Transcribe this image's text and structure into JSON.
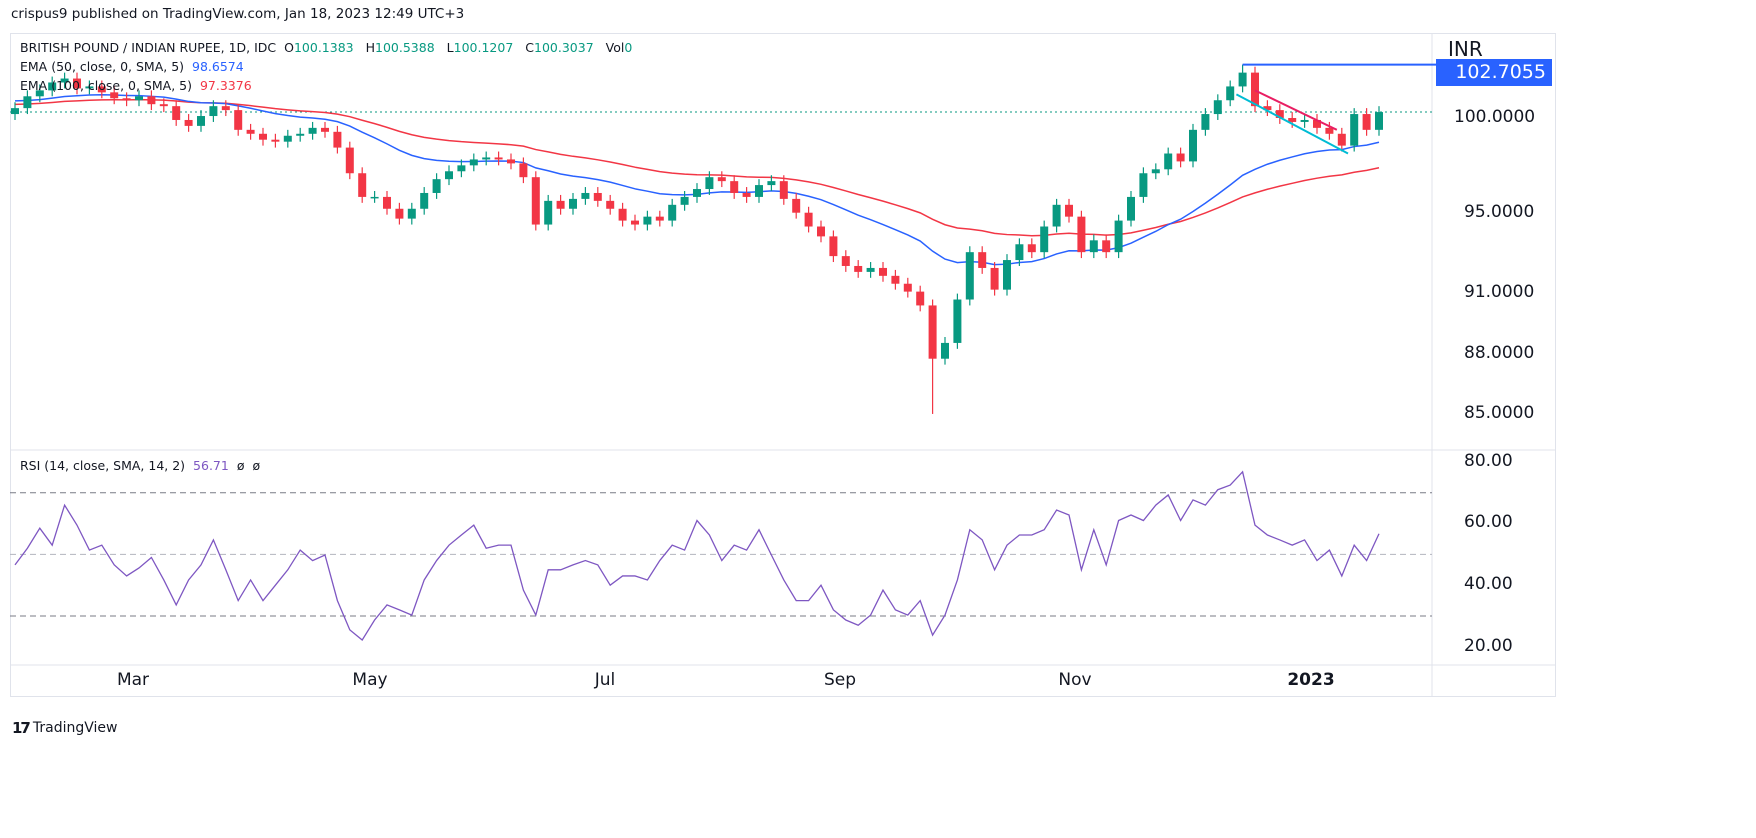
{
  "publisher_line": "crispus9 published on TradingView.com, Jan 18, 2023 12:49 UTC+3",
  "symbol": {
    "name": "BRITISH POUND / INDIAN RUPEE, 1D, IDC",
    "open_label": "O",
    "open": "100.1383",
    "high_label": "H",
    "high": "100.5388",
    "low_label": "L",
    "low": "100.1207",
    "close_label": "C",
    "close": "100.3037",
    "vol_label": "Vol",
    "vol": "0"
  },
  "indicators": {
    "ema50": {
      "label": "EMA (50, close, 0, SMA, 5)",
      "value": "98.6574",
      "color": "#2962ff"
    },
    "ema100": {
      "label": "EMA (100, close, 0, SMA, 5)",
      "value": "97.3376",
      "color": "#f23645"
    },
    "rsi": {
      "label": "RSI (14, close, SMA, 14, 2)",
      "value": "56.71",
      "extra1": "ø",
      "extra2": "ø",
      "color": "#7e57c2"
    }
  },
  "price_axis": {
    "currency": "INR",
    "highlight_label": "102.7055",
    "ticks": [
      "100.0000",
      "95.0000",
      "91.0000",
      "88.0000",
      "85.0000"
    ]
  },
  "rsi_axis": {
    "ticks": [
      "80.00",
      "60.00",
      "40.00",
      "20.00"
    ],
    "bands": [
      70,
      50,
      30
    ]
  },
  "x_axis": {
    "ticks": [
      "Mar",
      "May",
      "Jul",
      "Sep",
      "Nov",
      "2023"
    ]
  },
  "branding": "TradingView",
  "colors": {
    "up": "#089981",
    "down": "#f23645",
    "resistance": "#2962ff",
    "upper_trend": "#e91e63",
    "lower_trend": "#00bcd4"
  },
  "chart_data": [
    {
      "type": "candlestick",
      "ylim": [
        84,
        104
      ],
      "close": [
        100.5,
        101.1,
        101.4,
        101.8,
        102.0,
        101.5,
        101.6,
        101.3,
        101.0,
        100.9,
        101.1,
        100.7,
        100.6,
        99.9,
        99.6,
        100.1,
        100.6,
        100.4,
        99.4,
        99.2,
        98.9,
        98.8,
        99.1,
        99.2,
        99.5,
        99.3,
        98.5,
        97.2,
        96.0,
        96.0,
        95.4,
        94.9,
        95.4,
        96.2,
        96.9,
        97.3,
        97.6,
        97.9,
        98.0,
        97.9,
        97.7,
        97.0,
        94.6,
        95.8,
        95.4,
        95.9,
        96.2,
        95.8,
        95.4,
        94.8,
        94.6,
        95.0,
        94.8,
        95.6,
        96.0,
        96.4,
        97.0,
        96.8,
        96.2,
        96.0,
        96.6,
        96.8,
        95.9,
        95.2,
        94.5,
        94.0,
        93.0,
        92.5,
        92.2,
        92.4,
        92.0,
        91.6,
        91.2,
        90.5,
        87.8,
        88.6,
        90.8,
        93.2,
        92.4,
        91.3,
        92.8,
        93.6,
        93.2,
        94.5,
        95.6,
        95.0,
        93.2,
        93.8,
        93.2,
        94.8,
        96.0,
        97.2,
        97.4,
        98.2,
        97.8,
        99.4,
        100.2,
        100.9,
        101.6,
        102.3,
        100.6,
        100.4,
        100.0,
        99.8,
        99.9,
        99.5,
        99.2,
        98.6,
        100.2,
        99.4,
        100.3
      ],
      "last_price": 100.3037,
      "resistance_level": 102.7055,
      "series": [
        {
          "name": "EMA (50, close, 0, SMA, 5)",
          "last": 98.6574
        },
        {
          "name": "EMA (100, close, 0, SMA, 5)",
          "last": 97.3376
        }
      ]
    },
    {
      "type": "line",
      "ylim": [
        13,
        84
      ],
      "name": "RSI (14, close, SMA, 14, 2)",
      "values": [
        46.6,
        52,
        58.5,
        53,
        66,
        59.5,
        51.4,
        53,
        46.6,
        43,
        45.6,
        49,
        41.7,
        33.6,
        41.7,
        46.6,
        54.7,
        45,
        35,
        41.7,
        35,
        40,
        45,
        51.4,
        48,
        49.8,
        35,
        25.5,
        22.2,
        28.7,
        33.6,
        32,
        30.3,
        41.7,
        48,
        53,
        56.3,
        59.5,
        52,
        53,
        53,
        38.4,
        30.3,
        45,
        45,
        46.6,
        48,
        46.6,
        40,
        43,
        43,
        41.7,
        48,
        53,
        51.4,
        61,
        56.3,
        48,
        53,
        51.4,
        58,
        49.8,
        41.7,
        35,
        35,
        40,
        32,
        28.7,
        27,
        30.3,
        38.4,
        32,
        30.3,
        35,
        23.8,
        30.3,
        41.7,
        58,
        54.7,
        45,
        53,
        56.3,
        56.3,
        58,
        64.4,
        62.8,
        45,
        58,
        46.6,
        61,
        62.8,
        61,
        66,
        69.3,
        61,
        67.7,
        66,
        71,
        72.5,
        76.8,
        59.5,
        56.3,
        54.7,
        53,
        54.7,
        48,
        51.4,
        43,
        53,
        48,
        56.71
      ]
    }
  ]
}
